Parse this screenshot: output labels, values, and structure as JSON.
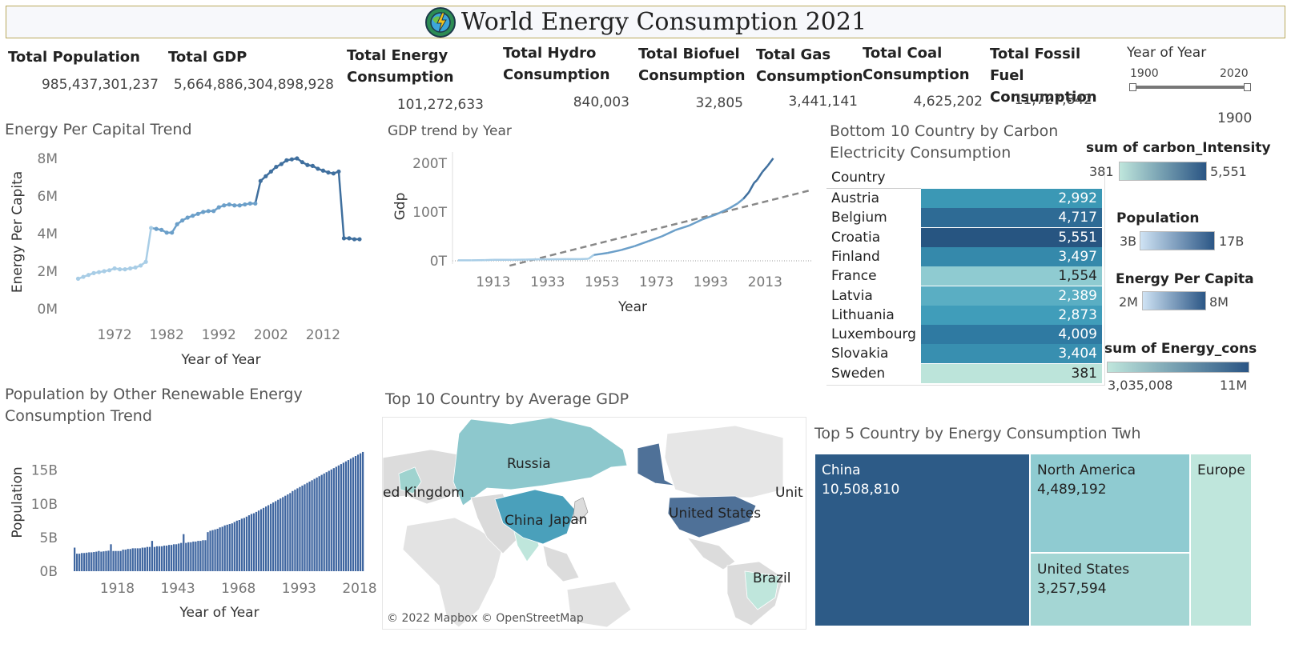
{
  "title": "World Energy Consumption 2021",
  "kpis": [
    {
      "label": "Total Population",
      "value": "985,437,301,237"
    },
    {
      "label": "Total GDP",
      "value": "5,664,886,304,898,928"
    },
    {
      "label": "Total Energy Consumption",
      "value": "101,272,633"
    },
    {
      "label": "Total Hydro Consumption",
      "value": "840,003"
    },
    {
      "label": "Total Biofuel Consumption",
      "value": "32,805"
    },
    {
      "label": "Total Gas Consumption",
      "value": "3,441,141"
    },
    {
      "label": "Total Coal Consumption",
      "value": "4,625,202"
    },
    {
      "label": "Total Fossil Fuel Consumption",
      "value": "11,727,842"
    }
  ],
  "year_filter": {
    "label": "Year of Year",
    "min": "1900",
    "max": "2020",
    "value": "1900"
  },
  "energy_trend": {
    "title": "Energy Per Capital Trend",
    "chart_data": {
      "type": "line",
      "xlabel": "Year of Year",
      "ylabel": "Energy Per Capita",
      "y_ticks": [
        "8M",
        "6M",
        "4M",
        "2M",
        "0M"
      ],
      "x_ticks": [
        "1972",
        "1982",
        "1992",
        "2002",
        "2012"
      ],
      "ylim": [
        0,
        8000000
      ],
      "x": [
        1965,
        1966,
        1967,
        1968,
        1969,
        1970,
        1971,
        1972,
        1973,
        1974,
        1975,
        1976,
        1977,
        1978,
        1979,
        1980,
        1981,
        1982,
        1983,
        1984,
        1985,
        1986,
        1987,
        1988,
        1989,
        1990,
        1991,
        1992,
        1993,
        1994,
        1995,
        1996,
        1997,
        1998,
        1999,
        2000,
        2001,
        2002,
        2003,
        2004,
        2005,
        2006,
        2007,
        2008,
        2009,
        2010,
        2011,
        2012,
        2013,
        2014,
        2015,
        2016,
        2017,
        2018,
        2019
      ],
      "y": [
        1.6,
        1.7,
        1.8,
        1.9,
        1.95,
        2.0,
        2.05,
        2.15,
        2.1,
        2.1,
        2.15,
        2.2,
        2.3,
        2.5,
        4.3,
        4.25,
        4.2,
        4.05,
        4.05,
        4.5,
        4.7,
        4.85,
        4.95,
        5.05,
        5.15,
        5.2,
        5.2,
        5.4,
        5.5,
        5.55,
        5.5,
        5.5,
        5.55,
        5.6,
        5.6,
        6.8,
        7.05,
        7.3,
        7.55,
        7.7,
        7.9,
        7.95,
        8.0,
        7.8,
        7.65,
        7.6,
        7.45,
        7.35,
        7.25,
        7.2,
        7.3,
        3.75,
        3.75,
        3.7,
        3.7
      ],
      "y_unit": "M"
    }
  },
  "gdp_trend": {
    "title": "GDP trend by Year",
    "chart_data": {
      "type": "line",
      "xlabel": "Year",
      "ylabel": "Gdp",
      "y_ticks": [
        "200T",
        "100T",
        "0T"
      ],
      "x_ticks": [
        "1913",
        "1933",
        "1953",
        "1973",
        "1993",
        "2013"
      ],
      "ylim": [
        0,
        200
      ],
      "x": [
        1900,
        1905,
        1910,
        1913,
        1920,
        1925,
        1930,
        1935,
        1940,
        1945,
        1948,
        1950,
        1955,
        1960,
        1965,
        1970,
        1975,
        1980,
        1985,
        1990,
        1995,
        2000,
        2003,
        2005,
        2007,
        2009,
        2010,
        2012,
        2014,
        2016
      ],
      "y": [
        1,
        1,
        1.5,
        2,
        2,
        2.5,
        3,
        3,
        3.5,
        3.5,
        4,
        12,
        16,
        22,
        30,
        40,
        50,
        63,
        72,
        85,
        95,
        108,
        118,
        127,
        140,
        160,
        165,
        182,
        195,
        210
      ],
      "trend_line": {
        "x": [
          1919,
          2030
        ],
        "y": [
          -10,
          145
        ]
      },
      "y_unit": "T"
    }
  },
  "carbon_table": {
    "title": "Bottom 10 Country by Carbon Electricity Consumption",
    "column": "Country",
    "rows": [
      {
        "country": "Austria",
        "value": "2,992",
        "color": "#3b98b5"
      },
      {
        "country": "Belgium",
        "value": "4,717",
        "color": "#2e6b95"
      },
      {
        "country": "Croatia",
        "value": "5,551",
        "color": "#275581"
      },
      {
        "country": "Finland",
        "value": "3,497",
        "color": "#3589ab"
      },
      {
        "country": "France",
        "value": "1,554",
        "color": "#8fcbd1"
      },
      {
        "country": "Latvia",
        "value": "2,389",
        "color": "#5aaec3"
      },
      {
        "country": "Lithuania",
        "value": "2,873",
        "color": "#409dba"
      },
      {
        "country": "Luxembourg",
        "value": "4,009",
        "color": "#2f7aa2"
      },
      {
        "country": "Slovakia",
        "value": "3,404",
        "color": "#388fb0"
      },
      {
        "country": "Sweden",
        "value": "381",
        "color": "#bce4da"
      }
    ]
  },
  "legends": [
    {
      "title": "sum of carbon_Intensity",
      "min": "381",
      "max": "5,551",
      "from": "#bfe6dc",
      "to": "#2a5584"
    },
    {
      "title": "Population",
      "min": "3B",
      "max": "17B",
      "from": "#cfe3f4",
      "to": "#2b5685"
    },
    {
      "title": "Energy Per Capita",
      "min": "2M",
      "max": "8M",
      "from": "#cfe3f4",
      "to": "#2b5685"
    },
    {
      "title": "sum of Energy_cons",
      "min": "3,035,008",
      "max": "11M",
      "from": "#bfe6dc",
      "to": "#2a5584"
    }
  ],
  "population_chart": {
    "title": "Population by Other Renewable Energy Consumption Trend",
    "chart_data": {
      "type": "bar",
      "xlabel": "Year of Year",
      "ylabel": "Population",
      "y_ticks": [
        "15B",
        "10B",
        "5B",
        "0B"
      ],
      "x_ticks": [
        "1918",
        "1943",
        "1968",
        "1993",
        "2018"
      ],
      "ylim": [
        0,
        19
      ],
      "x_range": [
        1900,
        2020
      ],
      "bars_start": 1900,
      "y_unit": "B",
      "values": [
        3.5,
        2.6,
        2.6,
        2.7,
        2.7,
        2.75,
        2.8,
        2.8,
        2.85,
        2.9,
        3.0,
        2.9,
        2.95,
        3.0,
        3.05,
        4.0,
        3.0,
        3.0,
        3.0,
        3.0,
        3.2,
        3.2,
        3.3,
        3.3,
        3.4,
        3.4,
        3.4,
        3.4,
        3.5,
        3.5,
        3.6,
        3.6,
        4.5,
        3.6,
        3.7,
        3.7,
        3.7,
        3.8,
        3.8,
        3.9,
        3.9,
        4.0,
        4.0,
        4.1,
        4.2,
        5.5,
        4.2,
        4.3,
        4.3,
        4.4,
        4.4,
        4.5,
        4.5,
        4.6,
        4.6,
        5.8,
        6.0,
        6.1,
        6.2,
        6.3,
        6.5,
        6.6,
        6.8,
        6.9,
        7.0,
        7.1,
        7.3,
        7.5,
        7.6,
        7.8,
        7.9,
        8.1,
        8.3,
        8.5,
        8.6,
        8.8,
        9.0,
        9.2,
        9.4,
        9.6,
        9.8,
        10.0,
        10.2,
        10.4,
        10.6,
        10.8,
        11.0,
        11.2,
        11.4,
        11.6,
        11.9,
        12.1,
        12.3,
        12.5,
        12.7,
        12.9,
        13.1,
        13.3,
        13.5,
        13.7,
        13.9,
        14.1,
        14.3,
        14.5,
        14.7,
        14.9,
        15.1,
        15.3,
        15.5,
        15.7,
        15.9,
        16.1,
        16.3,
        16.5,
        16.7,
        16.9,
        17.1,
        17.3,
        17.5,
        17.7
      ]
    }
  },
  "map": {
    "title": "Top 10 Country by Average GDP",
    "labels": [
      "Russia",
      "ed Kingdom",
      "China",
      "Japan",
      "United States",
      "Unit",
      "Brazil"
    ],
    "credit": "© 2022 Mapbox © OpenStreetMap"
  },
  "treemap": {
    "title": "Top 5 Country by Energy Consumption Twh",
    "cells": [
      {
        "name": "China",
        "value": "10,508,810",
        "color": "#2d5b87",
        "text": "#fff"
      },
      {
        "name": "North America",
        "value": "4,489,192",
        "color": "#8fcbd1",
        "text": "#222"
      },
      {
        "name": "United States",
        "value": "3,257,594",
        "color": "#a4d6d4",
        "text": "#222"
      },
      {
        "name": "Europe",
        "value": "",
        "color": "#bfe6dc",
        "text": "#222"
      }
    ]
  }
}
